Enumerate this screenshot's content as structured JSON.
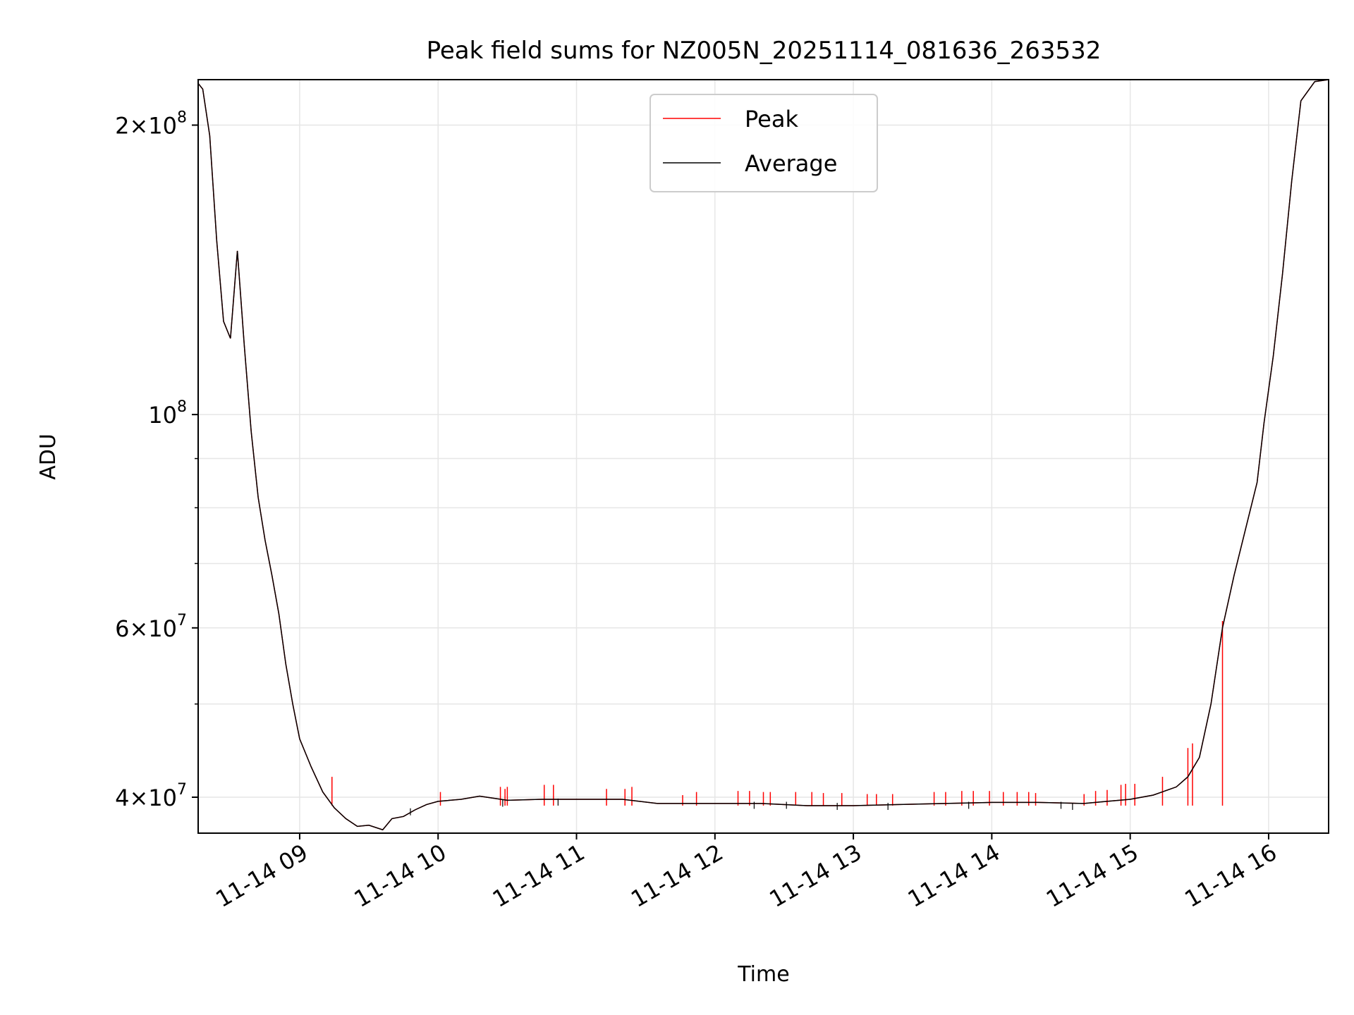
{
  "chart_data": {
    "type": "line",
    "title": "Peak field sums for NZ005N_20251114_081636_263532",
    "xlabel": "Time",
    "ylabel": "ADU",
    "yscale": "log",
    "grid": true,
    "legend_position": "top-center",
    "xlim": [
      "2025-11-14 08:16",
      "2025-11-14 16:26"
    ],
    "ylim": [
      36700000,
      223000000
    ],
    "x_ticks": [
      {
        "value": "2025-11-14 09:00",
        "label": "11-14 09"
      },
      {
        "value": "2025-11-14 10:00",
        "label": "11-14 10"
      },
      {
        "value": "2025-11-14 11:00",
        "label": "11-14 11"
      },
      {
        "value": "2025-11-14 12:00",
        "label": "11-14 12"
      },
      {
        "value": "2025-11-14 13:00",
        "label": "11-14 13"
      },
      {
        "value": "2025-11-14 14:00",
        "label": "11-14 14"
      },
      {
        "value": "2025-11-14 15:00",
        "label": "11-14 15"
      },
      {
        "value": "2025-11-14 16:00",
        "label": "11-14 16"
      }
    ],
    "y_major_ticks": [
      {
        "value": 40000000,
        "mantissa": "4",
        "exponent": "7"
      },
      {
        "value": 60000000,
        "mantissa": "6",
        "exponent": "7"
      },
      {
        "value": 100000000,
        "mantissa": "",
        "exponent": "8"
      },
      {
        "value": 200000000,
        "mantissa": "2",
        "exponent": "8"
      }
    ],
    "y_minor_grid": [
      50000000,
      70000000,
      80000000,
      90000000
    ],
    "series": [
      {
        "name": "Peak",
        "color": "#ff0000",
        "x": [
          "2025-11-14 08:16",
          "2025-11-14 08:18",
          "2025-11-14 08:21",
          "2025-11-14 08:24",
          "2025-11-14 08:27",
          "2025-11-14 08:30",
          "2025-11-14 08:33",
          "2025-11-14 08:36",
          "2025-11-14 08:39",
          "2025-11-14 08:42",
          "2025-11-14 08:45",
          "2025-11-14 08:48",
          "2025-11-14 08:51",
          "2025-11-14 08:54",
          "2025-11-14 08:57",
          "2025-11-14 09:00",
          "2025-11-14 09:05",
          "2025-11-14 09:10",
          "2025-11-14 09:15",
          "2025-11-14 09:20",
          "2025-11-14 09:25",
          "2025-11-14 09:30",
          "2025-11-14 09:36",
          "2025-11-14 09:40",
          "2025-11-14 09:45",
          "2025-11-14 09:50",
          "2025-11-14 09:55",
          "2025-11-14 10:00",
          "2025-11-14 10:10",
          "2025-11-14 10:18",
          "2025-11-14 10:30",
          "2025-11-14 10:45",
          "2025-11-14 11:00",
          "2025-11-14 11:20",
          "2025-11-14 11:35",
          "2025-11-14 11:45",
          "2025-11-14 12:00",
          "2025-11-14 12:20",
          "2025-11-14 12:40",
          "2025-11-14 13:00",
          "2025-11-14 13:20",
          "2025-11-14 13:40",
          "2025-11-14 14:00",
          "2025-11-14 14:20",
          "2025-11-14 14:40",
          "2025-11-14 14:50",
          "2025-11-14 15:00",
          "2025-11-14 15:10",
          "2025-11-14 15:20",
          "2025-11-14 15:25",
          "2025-11-14 15:30",
          "2025-11-14 15:35",
          "2025-11-14 15:40",
          "2025-11-14 15:45",
          "2025-11-14 15:50",
          "2025-11-14 15:55",
          "2025-11-14 15:58",
          "2025-11-14 16:02",
          "2025-11-14 16:06",
          "2025-11-14 16:10",
          "2025-11-14 16:14",
          "2025-11-14 16:20",
          "2025-11-14 16:26"
        ],
        "values": [
          221000000,
          218000000,
          195000000,
          152000000,
          125000000,
          120000000,
          148000000,
          118000000,
          96000000,
          82000000,
          74000000,
          68000000,
          62000000,
          55000000,
          50000000,
          46000000,
          43000000,
          40500000,
          39000000,
          38000000,
          37300000,
          37400000,
          37000000,
          38000000,
          38200000,
          38800000,
          39300000,
          39600000,
          39800000,
          40100000,
          39700000,
          39800000,
          39800000,
          39800000,
          39400000,
          39400000,
          39400000,
          39400000,
          39200000,
          39200000,
          39300000,
          39400000,
          39500000,
          39500000,
          39400000,
          39600000,
          39800000,
          40200000,
          41000000,
          42000000,
          44000000,
          50000000,
          60000000,
          68000000,
          76000000,
          85000000,
          98000000,
          115000000,
          140000000,
          175000000,
          212000000,
          222000000,
          223000000
        ],
        "spikes": [
          [
            "2025-11-14 09:14",
            42000000
          ],
          [
            "2025-11-14 10:01",
            40500000
          ],
          [
            "2025-11-14 10:27",
            41000000
          ],
          [
            "2025-11-14 10:29",
            40800000
          ],
          [
            "2025-11-14 10:30",
            41000000
          ],
          [
            "2025-11-14 10:46",
            41200000
          ],
          [
            "2025-11-14 10:50",
            41200000
          ],
          [
            "2025-11-14 11:13",
            40800000
          ],
          [
            "2025-11-14 11:21",
            40800000
          ],
          [
            "2025-11-14 11:24",
            41000000
          ],
          [
            "2025-11-14 11:46",
            40200000
          ],
          [
            "2025-11-14 11:52",
            40500000
          ],
          [
            "2025-11-14 12:10",
            40600000
          ],
          [
            "2025-11-14 12:15",
            40600000
          ],
          [
            "2025-11-14 12:21",
            40500000
          ],
          [
            "2025-11-14 12:24",
            40500000
          ],
          [
            "2025-11-14 12:35",
            40500000
          ],
          [
            "2025-11-14 12:42",
            40500000
          ],
          [
            "2025-11-14 12:47",
            40400000
          ],
          [
            "2025-11-14 12:55",
            40400000
          ],
          [
            "2025-11-14 13:06",
            40300000
          ],
          [
            "2025-11-14 13:10",
            40300000
          ],
          [
            "2025-11-14 13:17",
            40300000
          ],
          [
            "2025-11-14 13:35",
            40500000
          ],
          [
            "2025-11-14 13:40",
            40500000
          ],
          [
            "2025-11-14 13:47",
            40600000
          ],
          [
            "2025-11-14 13:52",
            40600000
          ],
          [
            "2025-11-14 13:59",
            40600000
          ],
          [
            "2025-11-14 14:05",
            40500000
          ],
          [
            "2025-11-14 14:11",
            40500000
          ],
          [
            "2025-11-14 14:16",
            40500000
          ],
          [
            "2025-11-14 14:19",
            40400000
          ],
          [
            "2025-11-14 14:40",
            40300000
          ],
          [
            "2025-11-14 14:45",
            40600000
          ],
          [
            "2025-11-14 14:50",
            40700000
          ],
          [
            "2025-11-14 14:56",
            41200000
          ],
          [
            "2025-11-14 14:58",
            41300000
          ],
          [
            "2025-11-14 15:02",
            41300000
          ],
          [
            "2025-11-14 15:14",
            42000000
          ],
          [
            "2025-11-14 15:25",
            45000000
          ],
          [
            "2025-11-14 15:27",
            45500000
          ],
          [
            "2025-11-14 15:40",
            61000000
          ]
        ]
      },
      {
        "name": "Average",
        "color": "#000000",
        "x": [
          "2025-11-14 08:16",
          "2025-11-14 08:18",
          "2025-11-14 08:21",
          "2025-11-14 08:24",
          "2025-11-14 08:27",
          "2025-11-14 08:30",
          "2025-11-14 08:33",
          "2025-11-14 08:36",
          "2025-11-14 08:39",
          "2025-11-14 08:42",
          "2025-11-14 08:45",
          "2025-11-14 08:48",
          "2025-11-14 08:51",
          "2025-11-14 08:54",
          "2025-11-14 08:57",
          "2025-11-14 09:00",
          "2025-11-14 09:05",
          "2025-11-14 09:10",
          "2025-11-14 09:15",
          "2025-11-14 09:20",
          "2025-11-14 09:25",
          "2025-11-14 09:30",
          "2025-11-14 09:36",
          "2025-11-14 09:40",
          "2025-11-14 09:45",
          "2025-11-14 09:50",
          "2025-11-14 09:55",
          "2025-11-14 10:00",
          "2025-11-14 10:10",
          "2025-11-14 10:18",
          "2025-11-14 10:30",
          "2025-11-14 10:45",
          "2025-11-14 11:00",
          "2025-11-14 11:20",
          "2025-11-14 11:35",
          "2025-11-14 11:45",
          "2025-11-14 12:00",
          "2025-11-14 12:20",
          "2025-11-14 12:40",
          "2025-11-14 13:00",
          "2025-11-14 13:20",
          "2025-11-14 13:40",
          "2025-11-14 14:00",
          "2025-11-14 14:20",
          "2025-11-14 14:40",
          "2025-11-14 14:50",
          "2025-11-14 15:00",
          "2025-11-14 15:10",
          "2025-11-14 15:20",
          "2025-11-14 15:25",
          "2025-11-14 15:30",
          "2025-11-14 15:35",
          "2025-11-14 15:40",
          "2025-11-14 15:45",
          "2025-11-14 15:50",
          "2025-11-14 15:55",
          "2025-11-14 15:58",
          "2025-11-14 16:02",
          "2025-11-14 16:06",
          "2025-11-14 16:10",
          "2025-11-14 16:14",
          "2025-11-14 16:20",
          "2025-11-14 16:26"
        ],
        "values": [
          221000000,
          218000000,
          195000000,
          152000000,
          125000000,
          120000000,
          148000000,
          118000000,
          96000000,
          82000000,
          74000000,
          68000000,
          62000000,
          55000000,
          50000000,
          46000000,
          43000000,
          40500000,
          39000000,
          38000000,
          37300000,
          37400000,
          37000000,
          38000000,
          38200000,
          38800000,
          39300000,
          39600000,
          39800000,
          40100000,
          39700000,
          39800000,
          39800000,
          39800000,
          39400000,
          39400000,
          39400000,
          39400000,
          39200000,
          39200000,
          39300000,
          39400000,
          39500000,
          39500000,
          39400000,
          39600000,
          39800000,
          40200000,
          41000000,
          42000000,
          44000000,
          50000000,
          60000000,
          68000000,
          76000000,
          85000000,
          98000000,
          115000000,
          140000000,
          175000000,
          212000000,
          222000000,
          223000000
        ],
        "dips": [
          [
            "2025-11-14 09:48",
            38300000
          ],
          [
            "2025-11-14 10:28",
            39100000
          ],
          [
            "2025-11-14 10:52",
            39200000
          ],
          [
            "2025-11-14 12:17",
            38900000
          ],
          [
            "2025-11-14 12:31",
            38900000
          ],
          [
            "2025-11-14 12:53",
            38800000
          ],
          [
            "2025-11-14 13:15",
            38800000
          ],
          [
            "2025-11-14 13:50",
            38900000
          ],
          [
            "2025-11-14 14:30",
            38900000
          ],
          [
            "2025-11-14 14:35",
            38800000
          ]
        ]
      }
    ]
  }
}
